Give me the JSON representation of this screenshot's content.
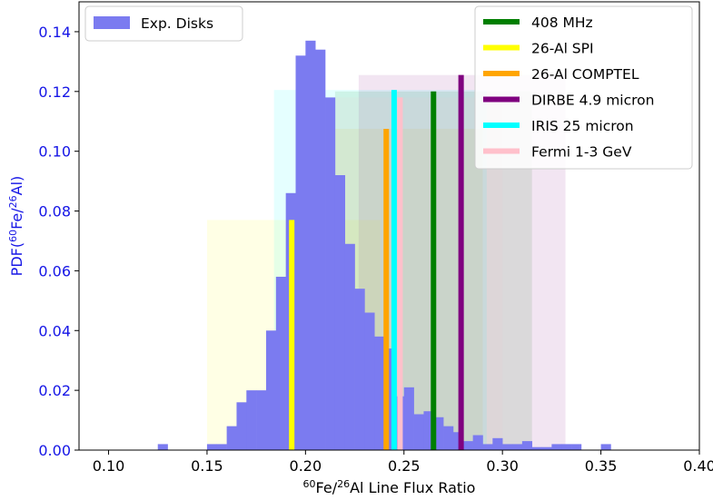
{
  "chart_data": {
    "type": "bar",
    "xlabel": {
      "prefix": "60",
      "mid1": "Fe/",
      "mid2": "26",
      "suffix": "Al Line Flux Ratio"
    },
    "ylabel": {
      "prefix": "PDF(",
      "sup1": "60",
      "mid": "Fe/",
      "sup2": "26",
      "suffix": "Al)"
    },
    "xlim": [
      0.085,
      0.4
    ],
    "ylim": [
      0,
      0.15
    ],
    "xticks": [
      "0.10",
      "0.15",
      "0.20",
      "0.25",
      "0.30",
      "0.35",
      "0.40"
    ],
    "xtick_values": [
      0.1,
      0.15,
      0.2,
      0.25,
      0.3,
      0.35,
      0.4
    ],
    "yticks": [
      "0.00",
      "0.02",
      "0.04",
      "0.06",
      "0.08",
      "0.10",
      "0.12",
      "0.14"
    ],
    "ytick_values": [
      0.0,
      0.02,
      0.04,
      0.06,
      0.08,
      0.1,
      0.12,
      0.14
    ],
    "grid": false,
    "histogram": {
      "name": "Exp. Disks",
      "color": "#7b7bf0",
      "bin_start": 0.1,
      "bin_width": 0.005,
      "values": [
        0,
        0,
        0,
        0,
        0,
        0.002,
        0,
        0,
        0,
        0,
        0.002,
        0.002,
        0.008,
        0.016,
        0.02,
        0.02,
        0.04,
        0.058,
        0.086,
        0.132,
        0.137,
        0.134,
        0.118,
        0.092,
        0.069,
        0.054,
        0.046,
        0.038,
        0.034,
        0.018,
        0.021,
        0.012,
        0.013,
        0.011,
        0.008,
        0.006,
        0.003,
        0.005,
        0.002,
        0.004,
        0.002,
        0.002,
        0.003,
        0.001,
        0.001,
        0.002,
        0.002,
        0.002,
        0,
        0,
        0.002,
        0,
        0,
        0,
        0,
        0,
        0,
        0,
        0,
        0
      ]
    },
    "lines": [
      {
        "name": "408 MHz",
        "color": "#007f00",
        "x": 0.265,
        "y": 0.12,
        "band": [
          0.215,
          0.315
        ],
        "band_top": 0.12
      },
      {
        "name": "26-Al SPI",
        "color": "#ffff00",
        "x": 0.193,
        "y": 0.077,
        "band": [
          0.15,
          0.238
        ],
        "band_top": 0.077
      },
      {
        "name": "26-Al COMPTEL",
        "color": "#ffa500",
        "x": 0.241,
        "y": 0.1075,
        "band": [
          0.197,
          0.29
        ],
        "band_top": 0.1075
      },
      {
        "name": "DIRBE 4.9 micron",
        "color": "#7f007f",
        "x": 0.279,
        "y": 0.1255,
        "band": [
          0.227,
          0.332
        ],
        "band_top": 0.1255
      },
      {
        "name": "IRIS 25 micron",
        "color": "#00ffff",
        "x": 0.245,
        "y": 0.1205,
        "band": [
          0.184,
          0.292
        ],
        "band_top": 0.1205
      },
      {
        "name": "Fermi 1-3 GeV",
        "color": "#ffc0cb",
        "x": 0.248,
        "y": 0.118,
        "band": [
          0.2,
          0.3
        ],
        "band_top": 0.118
      }
    ],
    "legend_left": {
      "placement": "top-left",
      "label": "Exp. Disks",
      "color": "#7b7bf0"
    },
    "legend_right": {
      "placement": "top-right"
    }
  }
}
